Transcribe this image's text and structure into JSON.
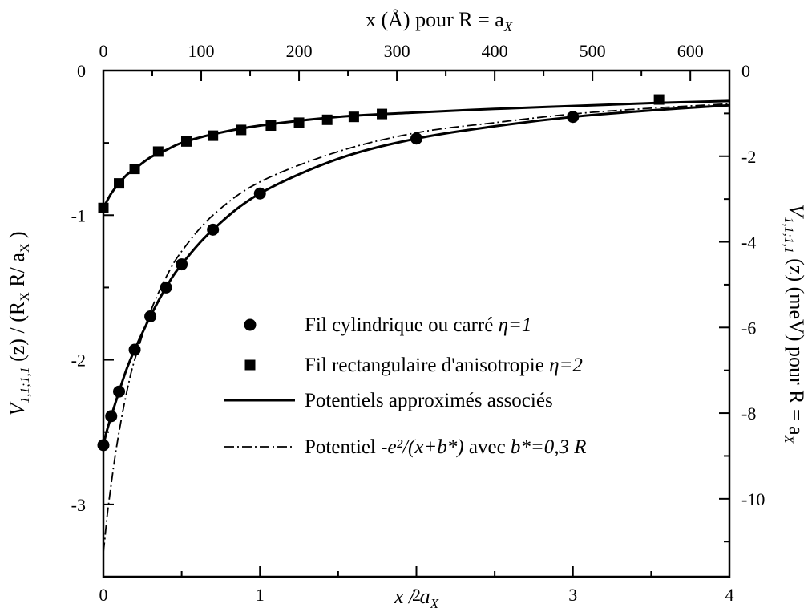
{
  "chart_data": {
    "type": "scatter",
    "x_range": [
      0,
      4
    ],
    "y_left_range": [
      -3.5,
      0
    ],
    "y_right_range": [
      -11.82,
      0
    ],
    "top_x_range": [
      0,
      640
    ],
    "grid": false,
    "legend_position": "bottom-right",
    "axes": {
      "bottom": {
        "ticks": [
          0,
          1,
          2,
          3,
          4
        ],
        "tick_labels": [
          "0",
          "1",
          "2",
          "3",
          "4"
        ],
        "label_main": "x / a",
        "label_sub": "X"
      },
      "left": {
        "ticks": [
          0,
          -1,
          -2,
          -3
        ],
        "tick_labels": [
          "0",
          "-1",
          "-2",
          "-3"
        ],
        "label_main": "V",
        "label_sub": "1,1;1,1",
        "label_rest": " (z) / (R",
        "label_sub2": "X",
        "label_rest2": " R/ a",
        "label_sub3": "X",
        "label_end": " )"
      },
      "top": {
        "ticks": [
          0,
          100,
          200,
          300,
          400,
          500,
          600
        ],
        "tick_labels": [
          "0",
          "100",
          "200",
          "300",
          "400",
          "500",
          "600"
        ],
        "label_main": "x (Å)    pour R = a",
        "label_sub": "X"
      },
      "right": {
        "ticks": [
          0,
          -2,
          -4,
          -6,
          -8,
          -10
        ],
        "tick_labels": [
          "0",
          "-2",
          "-4",
          "-6",
          "-8",
          "-10"
        ],
        "label_main": "V",
        "label_sub": "1,1;1,1",
        "label_rest": " (z) (meV)   pour R = a",
        "label_sub2": "X"
      }
    },
    "series": [
      {
        "name": "Fil cylindrique ou carré η=1",
        "marker": "circle",
        "x": [
          0,
          0.05,
          0.1,
          0.2,
          0.3,
          0.4,
          0.5,
          0.7,
          1.0,
          2.0,
          3.0
        ],
        "y": [
          -2.59,
          -2.39,
          -2.22,
          -1.93,
          -1.7,
          -1.5,
          -1.34,
          -1.1,
          -0.85,
          -0.47,
          -0.32
        ]
      },
      {
        "name": "Fil rectangulaire d'anisotropie η=2",
        "marker": "square",
        "x": [
          0,
          0.1,
          0.2,
          0.35,
          0.53,
          0.7,
          0.88,
          1.07,
          1.25,
          1.43,
          1.6,
          1.78,
          3.55
        ],
        "y": [
          -0.95,
          -0.78,
          -0.68,
          -0.56,
          -0.49,
          -0.45,
          -0.41,
          -0.38,
          -0.36,
          -0.34,
          -0.32,
          -0.3,
          -0.2
        ]
      },
      {
        "name": "Potentiels approximés associés",
        "style": "solid",
        "curves": [
          {
            "x": [
              0,
              0.02,
              0.05,
              0.1,
              0.15,
              0.2,
              0.3,
              0.4,
              0.5,
              0.7,
              1.0,
              1.5,
              2.0,
              2.5,
              3.0,
              3.5,
              4.0
            ],
            "y": [
              -2.59,
              -2.5,
              -2.39,
              -2.22,
              -2.06,
              -1.93,
              -1.7,
              -1.5,
              -1.34,
              -1.1,
              -0.85,
              -0.61,
              -0.47,
              -0.385,
              -0.32,
              -0.275,
              -0.24
            ]
          },
          {
            "x": [
              0,
              0.05,
              0.1,
              0.15,
              0.2,
              0.3,
              0.4,
              0.5,
              0.7,
              1.0,
              1.5,
              2.0,
              2.5,
              3.0,
              3.5,
              4.0
            ],
            "y": [
              -0.95,
              -0.85,
              -0.78,
              -0.72,
              -0.68,
              -0.6,
              -0.55,
              -0.5,
              -0.44,
              -0.38,
              -0.32,
              -0.29,
              -0.265,
              -0.245,
              -0.225,
              -0.21
            ]
          }
        ]
      },
      {
        "name": "Potentiel -e²/(x+b*) avec b*=0,3 R",
        "style": "dash-dot",
        "x": [
          0,
          0.01,
          0.025,
          0.05,
          0.08,
          0.12,
          0.16,
          0.2,
          0.3,
          0.4,
          0.5,
          0.7,
          1.0,
          1.5,
          2.0,
          2.5,
          3.0,
          3.5,
          4.0
        ],
        "y": [
          -3.33,
          -3.23,
          -3.07,
          -2.86,
          -2.63,
          -2.38,
          -2.17,
          -2.0,
          -1.67,
          -1.43,
          -1.25,
          -1.0,
          -0.77,
          -0.56,
          -0.43,
          -0.36,
          -0.3,
          -0.26,
          -0.23
        ]
      }
    ],
    "legend": {
      "items": [
        {
          "marker": "circle",
          "text_plain": "Fil cylindrique ou carré ",
          "text_italic": "η=1"
        },
        {
          "marker": "square",
          "text_plain": "Fil rectangulaire d'anisotropie ",
          "text_italic": "η=2"
        },
        {
          "marker": "line",
          "text_plain": "Potentiels approximés associés",
          "text_italic": ""
        },
        {
          "marker": "dashdot",
          "text_plain": "Potentiel ",
          "text_italic": "-e²/(x+b*)",
          "text_plain2": " avec ",
          "text_italic2": "b*=0,3 R"
        }
      ]
    },
    "colors": {
      "ink": "#000000",
      "background": "#ffffff"
    }
  }
}
